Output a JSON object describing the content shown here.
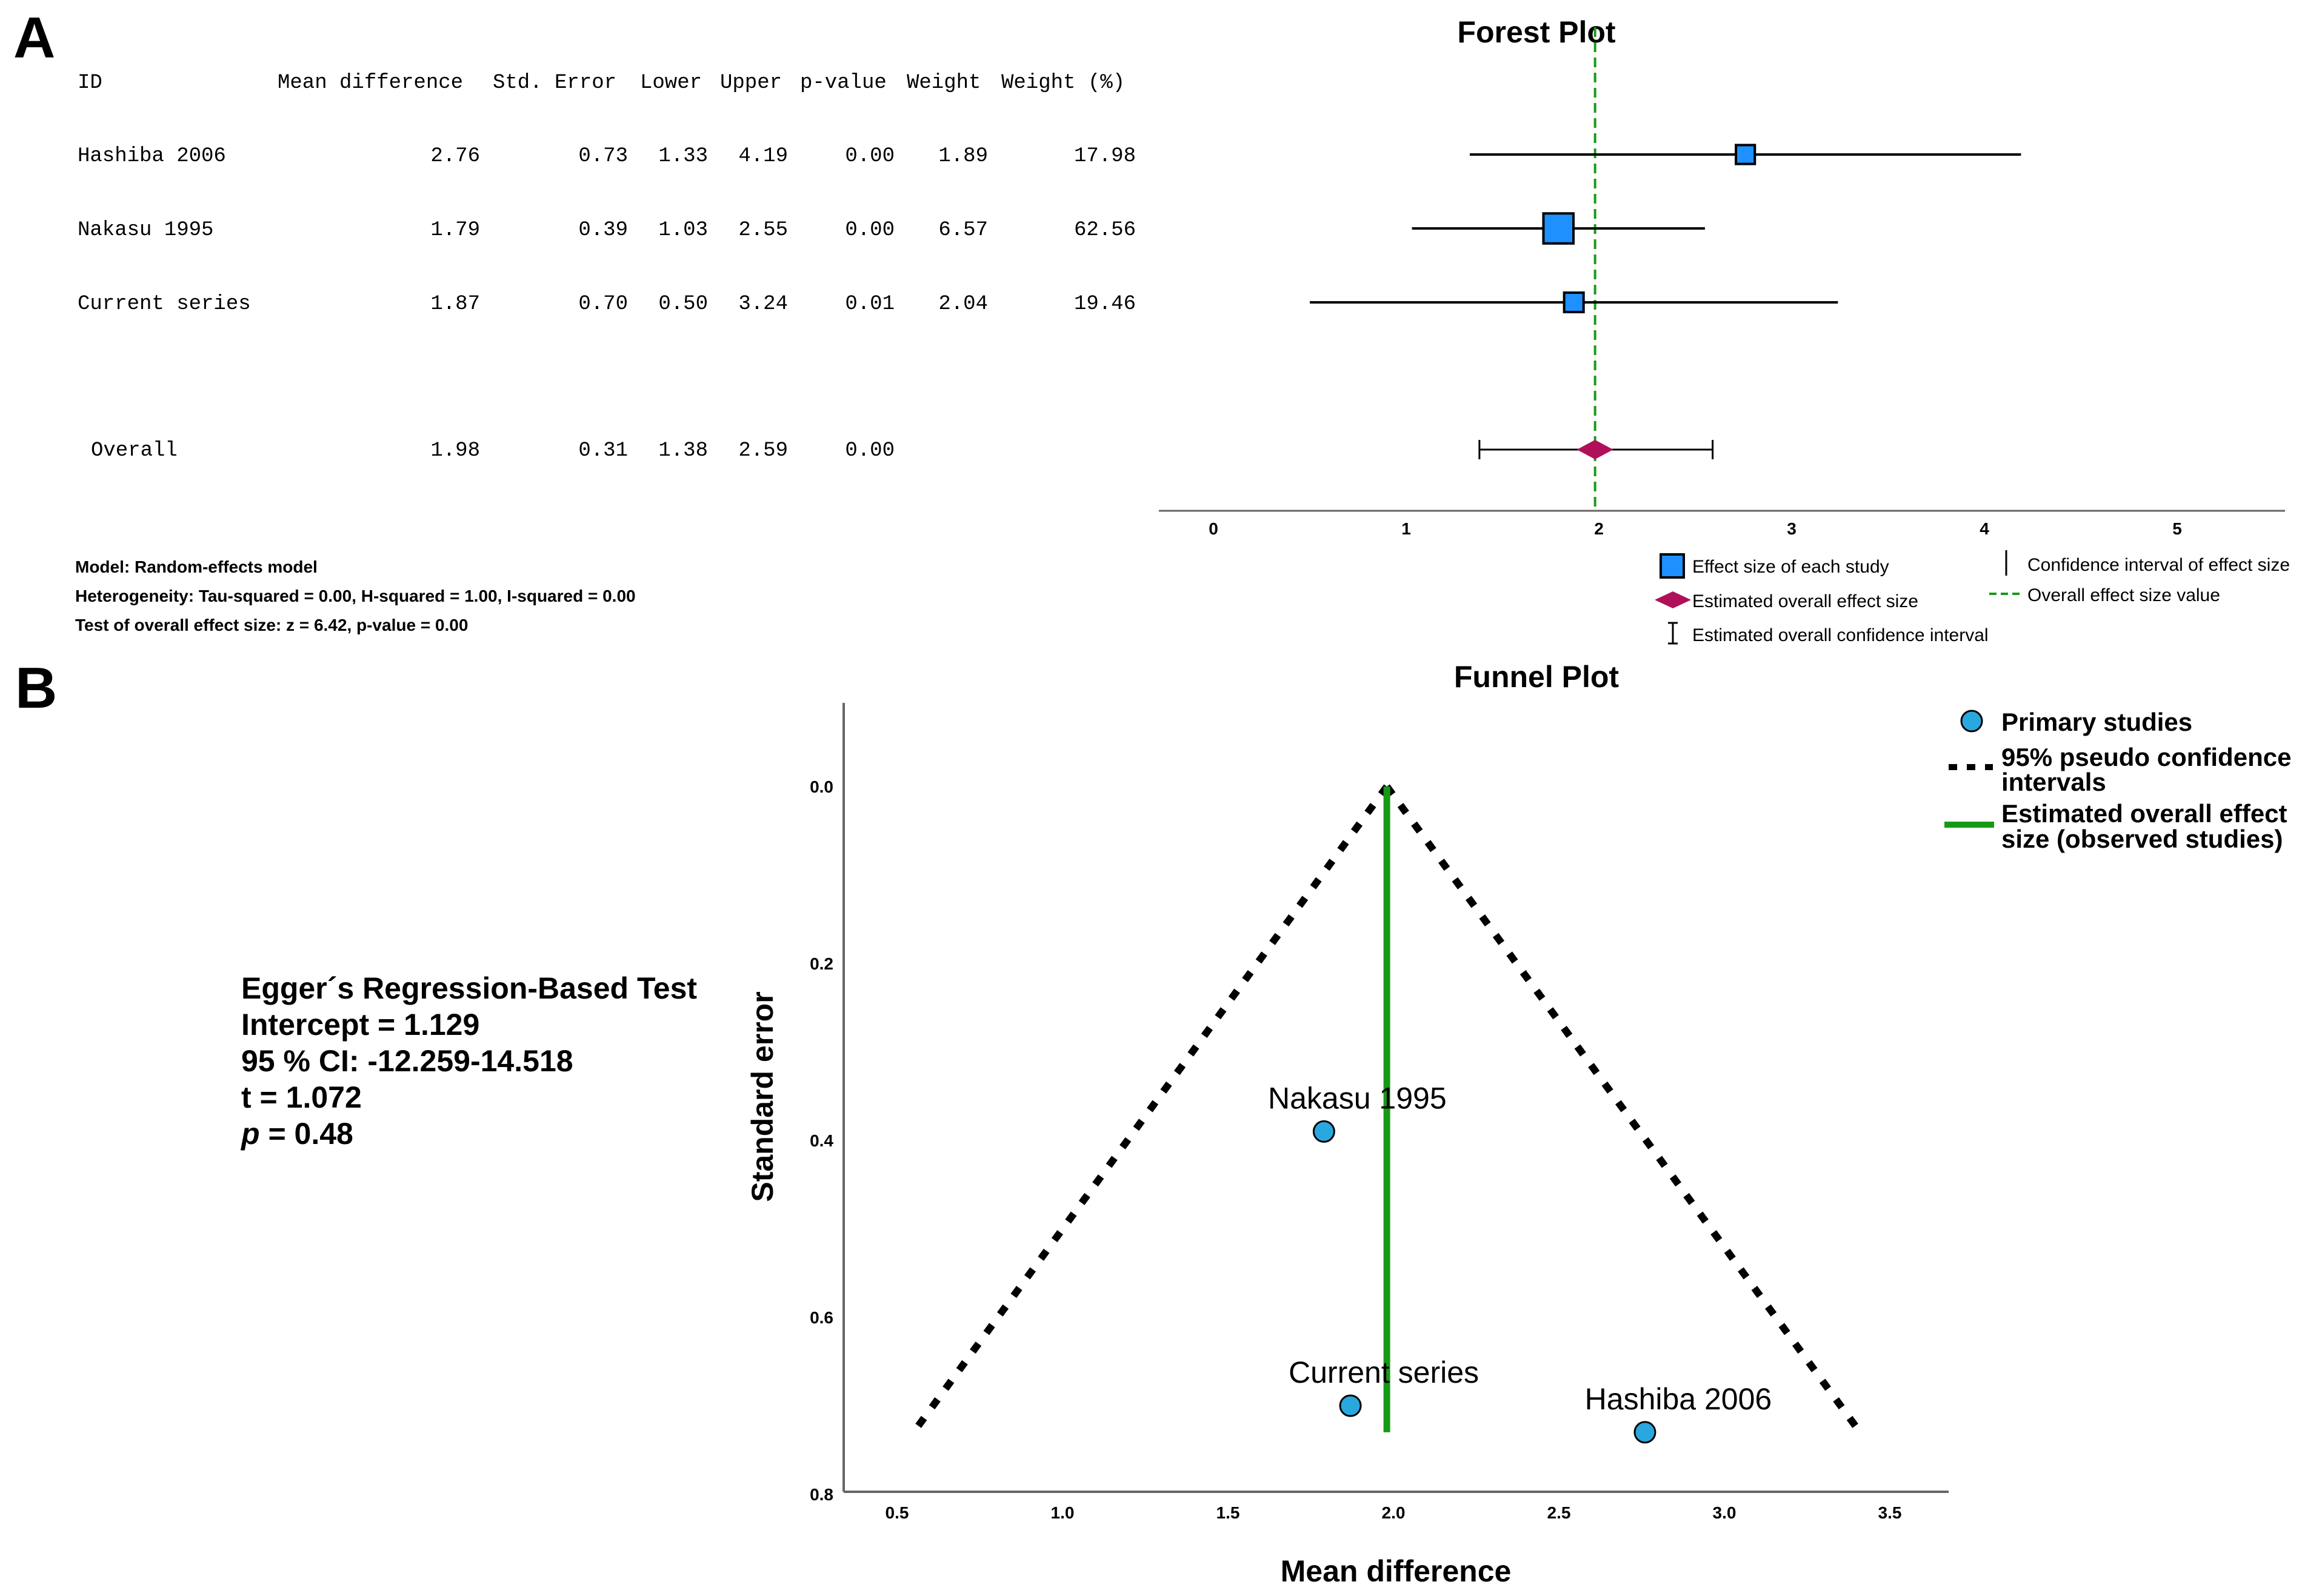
{
  "panel_a_label": "A",
  "panel_b_label": "B",
  "forest": {
    "title": "Forest Plot",
    "table_headers": [
      "ID",
      "Mean difference",
      "Std. Error",
      "Lower",
      "Upper",
      "p-value",
      "Weight",
      "Weight (%)"
    ],
    "rows": [
      {
        "id": "Hashiba 2006",
        "mean": "2.76",
        "se": "0.73",
        "lower": "1.33",
        "upper": "4.19",
        "p": "0.00",
        "weight": "1.89",
        "weight_pct": "17.98"
      },
      {
        "id": "Nakasu 1995",
        "mean": "1.79",
        "se": "0.39",
        "lower": "1.03",
        "upper": "2.55",
        "p": "0.00",
        "weight": "6.57",
        "weight_pct": "62.56"
      },
      {
        "id": "Current series",
        "mean": "1.87",
        "se": "0.70",
        "lower": "0.50",
        "upper": "3.24",
        "p": "0.01",
        "weight": "2.04",
        "weight_pct": "19.46"
      }
    ],
    "overall": {
      "id": "Overall",
      "mean": "1.98",
      "se": "0.31",
      "lower": "1.38",
      "upper": "2.59",
      "p": "0.00"
    },
    "notes": [
      "Model: Random-effects model",
      "Heterogeneity: Tau-squared = 0.00, H-squared = 1.00, I-squared = 0.00",
      "Test of overall effect size: z = 6.42, p-value = 0.00"
    ],
    "legend": {
      "effect_size": "Effect size of each study",
      "overall_effect": "Estimated overall effect size",
      "overall_ci": "Estimated overall confidence interval",
      "ci": "Confidence interval of effect size",
      "overall_line": "Overall effect size value"
    },
    "colors": {
      "square": "#1e90ff",
      "diamond": "#b0105a",
      "line": "#1a9a1a"
    }
  },
  "egger": {
    "title": "Egger´s Regression-Based Test",
    "intercept": "Intercept = 1.129",
    "ci": "95 % CI: -12.259-14.518",
    "t": "t = 1.072",
    "p_symbol": "p",
    "p_value": " = 0.48"
  },
  "funnel": {
    "title": "Funnel Plot",
    "legend": {
      "primary": "Primary studies",
      "pseudo_ci_1": "95% pseudo confidence",
      "pseudo_ci_2": "intervals",
      "overall_1": "Estimated overall effect",
      "overall_2": "size (observed studies)"
    },
    "colors": {
      "point": "#29a8e0",
      "line": "#159a15"
    }
  },
  "chart_data": [
    {
      "type": "forest",
      "title": "Forest Plot",
      "xlim": [
        -0.3,
        5.6
      ],
      "x_ticks": [
        0,
        1,
        2,
        3,
        4,
        5
      ],
      "studies": [
        {
          "name": "Hashiba 2006",
          "mean": 2.76,
          "lower": 1.33,
          "upper": 4.19,
          "weight_pct": 17.98
        },
        {
          "name": "Nakasu 1995",
          "mean": 1.79,
          "lower": 1.03,
          "upper": 2.55,
          "weight_pct": 62.56
        },
        {
          "name": "Current series",
          "mean": 1.87,
          "lower": 0.5,
          "upper": 3.24,
          "weight_pct": 19.46
        }
      ],
      "overall": {
        "mean": 1.98,
        "lower": 1.38,
        "upper": 2.59
      },
      "reference_line": 1.98
    },
    {
      "type": "scatter",
      "title": "Funnel Plot",
      "xlabel": "Mean difference",
      "ylabel": "Standard error",
      "xlim": [
        0.35,
        3.65
      ],
      "ylim": [
        0.8,
        -0.09
      ],
      "x_ticks": [
        "0.5",
        "1.0",
        "1.5",
        "2.0",
        "2.5",
        "3.0",
        "3.5"
      ],
      "y_ticks": [
        "0.0",
        "0.2",
        "0.4",
        "0.6",
        "0.8"
      ],
      "points": [
        {
          "label": "Nakasu 1995",
          "x": 1.79,
          "y": 0.39
        },
        {
          "label": "Current series",
          "x": 1.87,
          "y": 0.7
        },
        {
          "label": "Hashiba 2006",
          "x": 2.76,
          "y": 0.73
        }
      ],
      "overall_effect": 1.98,
      "overall_line_y_range": [
        0,
        0.73
      ],
      "pseudo_ci_funnel": {
        "apex": [
          1.98,
          0
        ],
        "left_end": [
          0.55,
          0.73
        ],
        "right_end": [
          3.41,
          0.73
        ]
      }
    }
  ]
}
